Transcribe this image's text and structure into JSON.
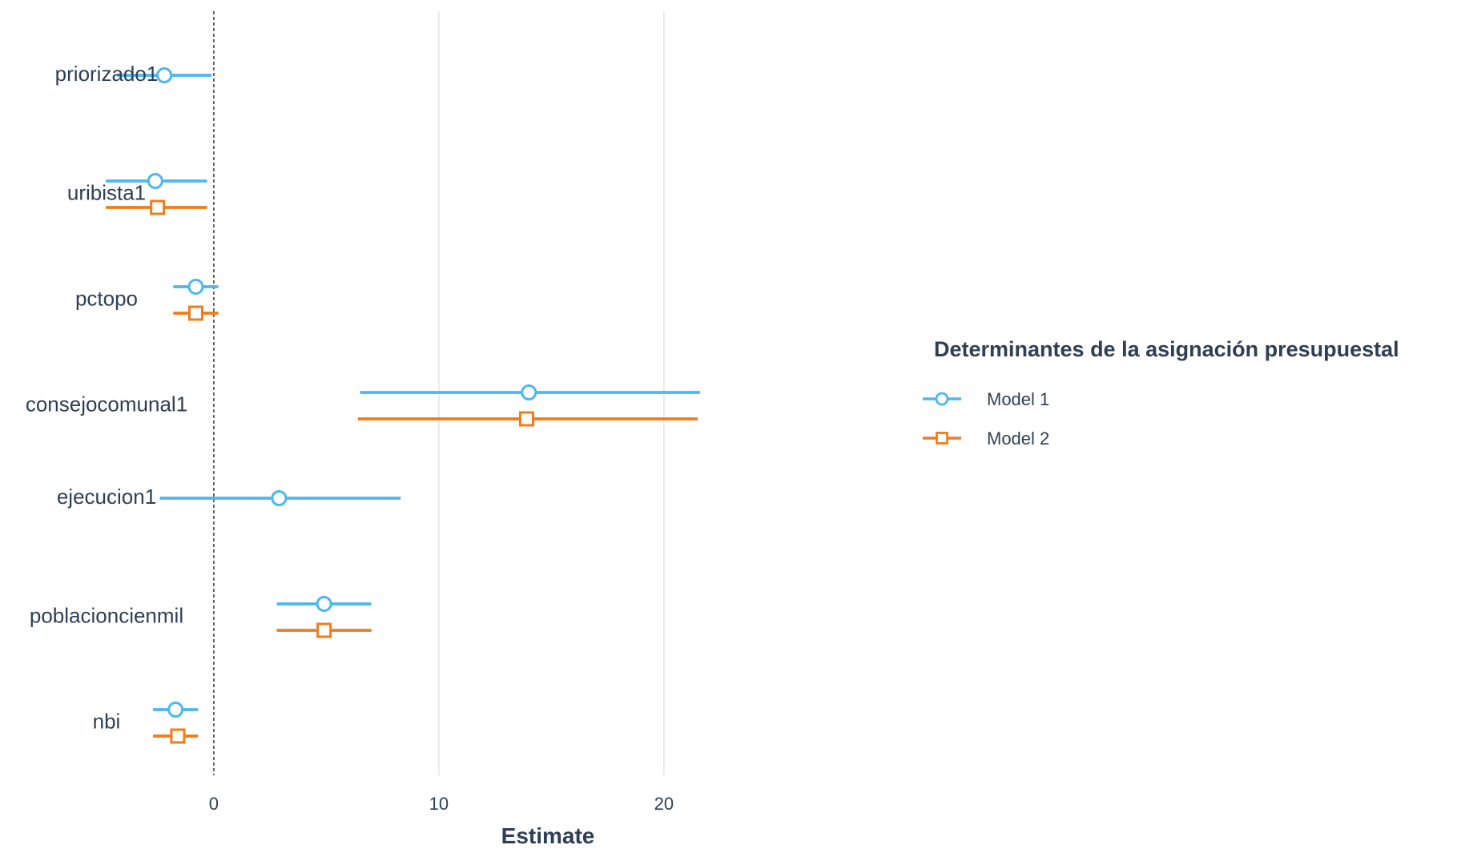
{
  "chart_data": {
    "type": "coefficient_plot",
    "xlabel": "Estimate",
    "ylabel": "",
    "xlim": [
      -9.5,
      31.5
    ],
    "xticks": [
      0,
      10,
      20
    ],
    "reference_line": 0,
    "grid": "vertical major",
    "legend": {
      "title": "Determinantes de la asignación presupuestal",
      "placement": "right"
    },
    "terms": [
      "priorizado1",
      "uribista1",
      "pctopo",
      "consejocomunal1",
      "ejecucion1",
      "poblacioncienmil",
      "nbi"
    ],
    "series": [
      {
        "name": "Model 1",
        "marker": "circle",
        "color": "#4cb7f0",
        "points": [
          {
            "term": "priorizado1",
            "estimate": -2.2,
            "low": -4.3,
            "high": -0.1
          },
          {
            "term": "uribista1",
            "estimate": -2.6,
            "low": -4.8,
            "high": -0.3
          },
          {
            "term": "pctopo",
            "estimate": -0.8,
            "low": -1.8,
            "high": 0.2
          },
          {
            "term": "consejocomunal1",
            "estimate": 14.0,
            "low": 6.5,
            "high": 21.6
          },
          {
            "term": "ejecucion1",
            "estimate": 2.9,
            "low": -2.4,
            "high": 8.3
          },
          {
            "term": "poblacioncienmil",
            "estimate": 4.9,
            "low": 2.8,
            "high": 7.0
          },
          {
            "term": "nbi",
            "estimate": -1.7,
            "low": -2.7,
            "high": -0.7
          }
        ]
      },
      {
        "name": "Model 2",
        "marker": "square",
        "color": "#f17c1a",
        "points": [
          {
            "term": "uribista1",
            "estimate": -2.5,
            "low": -4.8,
            "high": -0.3
          },
          {
            "term": "pctopo",
            "estimate": -0.8,
            "low": -1.8,
            "high": 0.2
          },
          {
            "term": "consejocomunal1",
            "estimate": 13.9,
            "low": 6.4,
            "high": 21.5
          },
          {
            "term": "poblacioncienmil",
            "estimate": 4.9,
            "low": 2.8,
            "high": 7.0
          },
          {
            "term": "nbi",
            "estimate": -1.6,
            "low": -2.7,
            "high": -0.7
          }
        ]
      }
    ]
  }
}
